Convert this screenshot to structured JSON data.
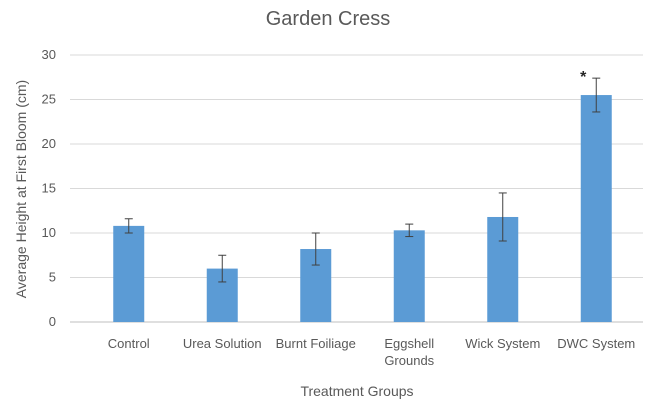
{
  "chart_data": {
    "type": "bar",
    "title": "Garden Cress",
    "xlabel": "Treatment Groups",
    "ylabel": "Average Height at First Bloom (cm)",
    "ylim": [
      0,
      30
    ],
    "yticks": [
      0,
      5,
      10,
      15,
      20,
      25,
      30
    ],
    "grid": true,
    "categories": [
      [
        "Control"
      ],
      [
        "Urea Solution"
      ],
      [
        "Burnt Foiliage"
      ],
      [
        "Eggshell",
        "Grounds"
      ],
      [
        "Wick System"
      ],
      [
        "DWC System"
      ]
    ],
    "values": [
      10.8,
      6.0,
      8.2,
      10.3,
      11.8,
      25.5
    ],
    "errors": [
      0.8,
      1.5,
      1.8,
      0.7,
      2.7,
      1.9
    ],
    "annotations": [
      {
        "category_index": 5,
        "text": "*"
      }
    ],
    "bar_color": "#5b9bd5"
  }
}
